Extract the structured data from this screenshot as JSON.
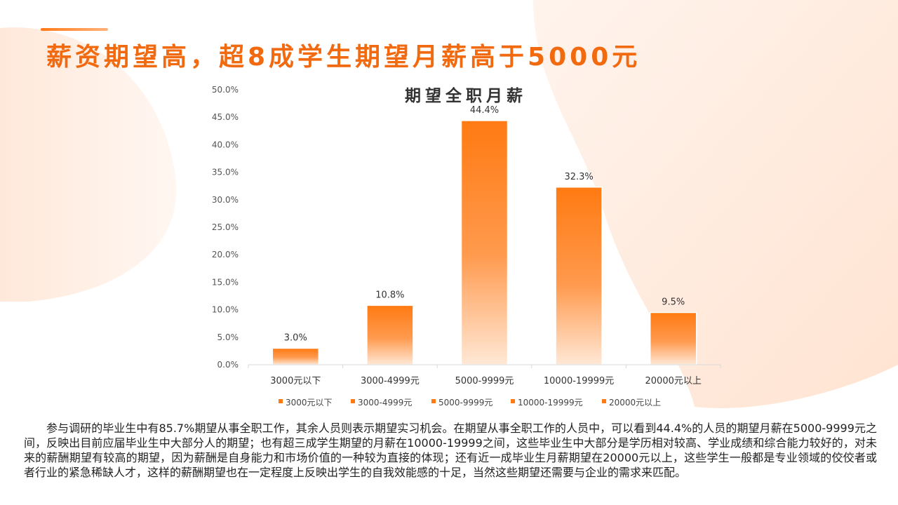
{
  "page": {
    "title": "薪资期望高，超8成学生期望月薪高于5000元",
    "description": "参与调研的毕业生中有85.7%期望从事全职工作，其余人员则表示期望实习机会。在期望从事全职工作的人员中，可以看到44.4%的人员的期望月薪在5000-9999元之间，反映出目前应届毕业生中大部分人的期望；也有超三成学生期望的月薪在10000-19999之间，这些毕业生中大部分是学历相对较高、学业成绩和综合能力较好的，对未来的薪酬期望有较高的期望，因为薪酬是自身能力和市场价值的一种较为直接的体现；还有近一成毕业生月薪期望在20000元以上，这些学生一般都是专业领域的佼佼者或者行业的紧急稀缺人才，这样的薪酬期望也在一定程度上反映出学生的自我效能感的十足，当然这些期望还需要与企业的需求来匹配。"
  },
  "colors": {
    "accent": "#f26a10",
    "bar_top": "#ff7a12",
    "bar_bottom": "#ffe8d6",
    "decor": "#ffe9dc"
  },
  "chart_data": {
    "type": "bar",
    "title": "期望全职月薪",
    "categories": [
      "3000元以下",
      "3000-4999元",
      "5000-9999元",
      "10000-19999元",
      "20000元以上"
    ],
    "values": [
      3.0,
      10.8,
      44.4,
      32.3,
      9.5
    ],
    "data_labels": [
      "3.0%",
      "10.8%",
      "44.4%",
      "32.3%",
      "9.5%"
    ],
    "unit": "%",
    "ylim": [
      0,
      50
    ],
    "yticks": [
      "0.0%",
      "5.0%",
      "10.0%",
      "15.0%",
      "20.0%",
      "25.0%",
      "30.0%",
      "35.0%",
      "40.0%",
      "45.0%",
      "50.0%"
    ],
    "legend": [
      "3000元以下",
      "3000-4999元",
      "5000-9999元",
      "10000-19999元",
      "20000元以上"
    ],
    "legend_position": "bottom",
    "grid": false
  }
}
